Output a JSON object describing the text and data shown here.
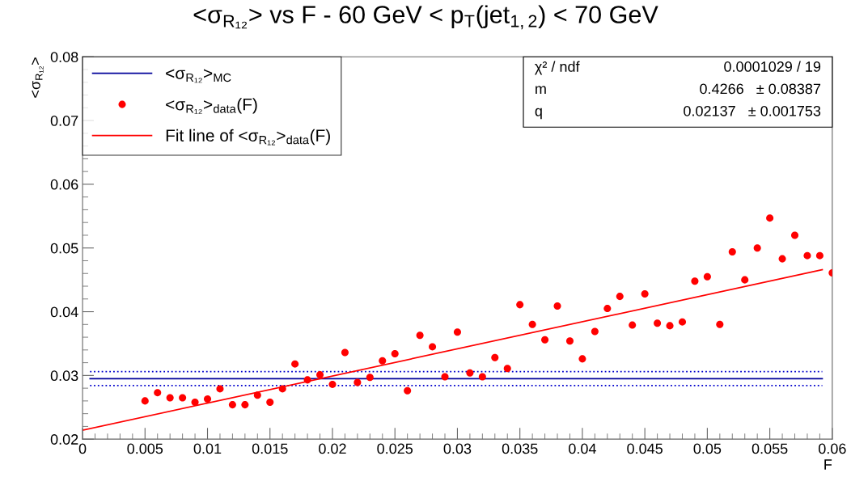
{
  "chart_data": {
    "type": "scatter",
    "title": "<σ$_{R₁₂}$> vs F - 60 GeV < p$_{T}$(jet$_{1,2}$) < 70 GeV",
    "xlabel": "F",
    "ylabel": "<σ$_{R₁₂}$>",
    "xlim": [
      0,
      0.06
    ],
    "xticks": [
      0,
      0.005,
      0.01,
      0.015,
      0.02,
      0.025,
      0.03,
      0.035,
      0.04,
      0.045,
      0.05,
      0.055,
      0.06
    ],
    "ylim": [
      0.02,
      0.08
    ],
    "yticks": [
      0.02,
      0.03,
      0.04,
      0.05,
      0.06,
      0.07,
      0.08
    ],
    "grid": false,
    "legend": "top left",
    "series": [
      {
        "name": "<σ$_{R₁₂}$>$_{MC}$",
        "type": "line",
        "color": "#000099",
        "line_style": "solid",
        "x": [
          0.0006,
          0.0592
        ],
        "values": [
          0.0295,
          0.0295
        ]
      },
      {
        "type": "line",
        "color": "#0000cc",
        "line_style": "dotted",
        "x": [
          0.0006,
          0.0592
        ],
        "values": [
          0.0306,
          0.0306
        ]
      },
      {
        "type": "line",
        "color": "#0000cc",
        "line_style": "dotted",
        "x": [
          0.0006,
          0.0592
        ],
        "values": [
          0.0284,
          0.0284
        ]
      },
      {
        "name": "<σ$_{R₁₂}$>$_{data}$(F)",
        "color": "#ff0000",
        "marker": "circle",
        "x": [
          0.005,
          0.006,
          0.007,
          0.008,
          0.009,
          0.01,
          0.011,
          0.012,
          0.013,
          0.014,
          0.015,
          0.016,
          0.017,
          0.018,
          0.019,
          0.02,
          0.021,
          0.022,
          0.023,
          0.024,
          0.025,
          0.026,
          0.027,
          0.028,
          0.029,
          0.03,
          0.031,
          0.032,
          0.033,
          0.034,
          0.035,
          0.036,
          0.037,
          0.038,
          0.039,
          0.04,
          0.041,
          0.042,
          0.043,
          0.044,
          0.045,
          0.046,
          0.047,
          0.048,
          0.049,
          0.05,
          0.051,
          0.052,
          0.053,
          0.054,
          0.055,
          0.056,
          0.057,
          0.058,
          0.059,
          0.06
        ],
        "values": [
          0.026,
          0.0273,
          0.0265,
          0.0265,
          0.0258,
          0.0263,
          0.0279,
          0.0254,
          0.0254,
          0.0269,
          0.0258,
          0.0279,
          0.0318,
          0.0293,
          0.0301,
          0.0286,
          0.0336,
          0.0289,
          0.0297,
          0.0323,
          0.0334,
          0.0276,
          0.0363,
          0.0345,
          0.0298,
          0.0368,
          0.0304,
          0.0298,
          0.0328,
          0.0311,
          0.0411,
          0.038,
          0.0356,
          0.0409,
          0.0354,
          0.0326,
          0.0369,
          0.0405,
          0.0424,
          0.0379,
          0.0428,
          0.0382,
          0.0378,
          0.0384,
          0.0448,
          0.0455,
          0.038,
          0.0494,
          0.045,
          0.05,
          0.0547,
          0.0483,
          0.052,
          0.0488,
          0.0488,
          0.0461
        ]
      },
      {
        "name": "Fit line of <σ$_{R₁₂}$>$_{data}$(F)",
        "type": "line",
        "color": "#ff0000",
        "line_style": "solid",
        "x": [
          0,
          0.0592
        ],
        "values": [
          0.0214,
          0.0466
        ]
      }
    ],
    "annotations": [
      "χ² / ndf",
      "0.0001029 / 19",
      "m",
      "0.4266   ± 0.08387",
      "q",
      "0.02137   ± 0.001753"
    ]
  }
}
